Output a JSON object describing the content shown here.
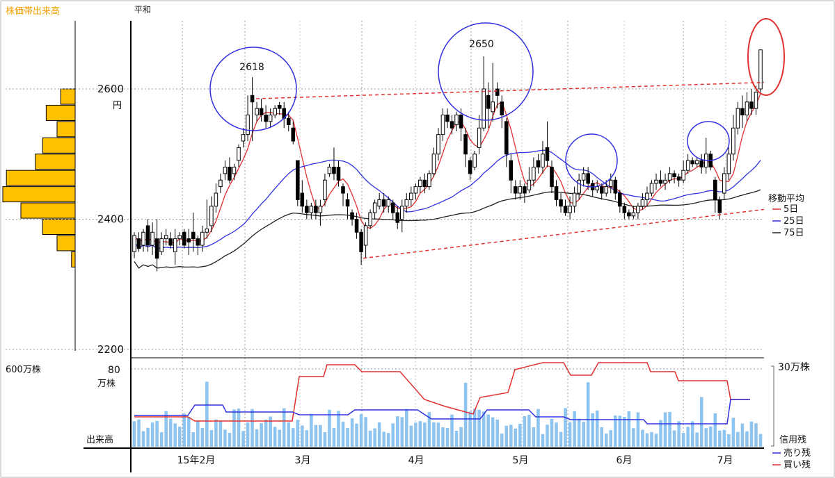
{
  "chart_data": {
    "type": "candlestick",
    "header": {
      "profile_label": "株価帯出来高",
      "market_label": "平和"
    },
    "price_axis": {
      "ticks": [
        2200,
        2400,
        2600
      ],
      "unit": "円",
      "range": [
        2200,
        2600
      ]
    },
    "x_ticks": [
      {
        "label": "15年2月",
        "index": 17
      },
      {
        "label": "3月",
        "index": 36
      },
      {
        "label": "4月",
        "index": 64
      },
      {
        "label": "5月",
        "index": 90
      },
      {
        "label": "6月",
        "index": 111
      },
      {
        "label": "7月",
        "index": 132
      }
    ],
    "volume_profile": {
      "scale_label": "600万株",
      "levels": [
        {
          "price": 2600,
          "value": 0.2
        },
        {
          "price": 2575,
          "value": 0.4
        },
        {
          "price": 2550,
          "value": 0.25
        },
        {
          "price": 2525,
          "value": 0.45
        },
        {
          "price": 2500,
          "value": 0.55
        },
        {
          "price": 2475,
          "value": 0.95
        },
        {
          "price": 2450,
          "value": 1.0
        },
        {
          "price": 2425,
          "value": 0.75
        },
        {
          "price": 2400,
          "value": 0.45
        },
        {
          "price": 2375,
          "value": 0.25
        },
        {
          "price": 2350,
          "value": 0.05
        }
      ]
    },
    "annotations": [
      {
        "text": "2618",
        "price": 2618
      },
      {
        "text": "2650",
        "price": 2650
      }
    ],
    "ma_legend": {
      "title": "移動平均",
      "items": [
        {
          "label": "5日",
          "color": "#e03030"
        },
        {
          "label": "25日",
          "color": "#3030e0"
        },
        {
          "label": "75日",
          "color": "#202020"
        }
      ]
    },
    "volume_axis": {
      "tick_label": "80",
      "unit_label": "万株",
      "name_label": "出来高",
      "right_scale_label": "30万株"
    },
    "margin_legend": {
      "title": "信用残",
      "items": [
        {
          "label": "売り残",
          "color": "#3030e0"
        },
        {
          "label": "買い残",
          "color": "#e03030"
        }
      ]
    },
    "candles": [
      [
        2350,
        2375,
        2340,
        2380
      ],
      [
        2370,
        2355,
        2350,
        2380
      ],
      [
        2360,
        2380,
        2350,
        2385
      ],
      [
        2390,
        2360,
        2350,
        2400
      ],
      [
        2360,
        2380,
        2345,
        2395
      ],
      [
        2370,
        2340,
        2320,
        2400
      ],
      [
        2350,
        2370,
        2345,
        2380
      ],
      [
        2370,
        2375,
        2360,
        2385
      ],
      [
        2370,
        2360,
        2355,
        2380
      ],
      [
        2350,
        2370,
        2330,
        2385
      ],
      [
        2370,
        2375,
        2360,
        2380
      ],
      [
        2380,
        2360,
        2355,
        2385
      ],
      [
        2370,
        2365,
        2345,
        2385
      ],
      [
        2380,
        2370,
        2350,
        2410
      ],
      [
        2370,
        2360,
        2345,
        2375
      ],
      [
        2360,
        2380,
        2350,
        2390
      ],
      [
        2380,
        2385,
        2370,
        2430
      ],
      [
        2390,
        2420,
        2380,
        2435
      ],
      [
        2420,
        2440,
        2410,
        2455
      ],
      [
        2450,
        2460,
        2440,
        2470
      ],
      [
        2470,
        2480,
        2460,
        2490
      ],
      [
        2480,
        2460,
        2455,
        2495
      ],
      [
        2470,
        2480,
        2460,
        2485
      ],
      [
        2490,
        2510,
        2480,
        2515
      ],
      [
        2520,
        2530,
        2510,
        2540
      ],
      [
        2530,
        2560,
        2520,
        2590
      ],
      [
        2590,
        2580,
        2520,
        2618
      ],
      [
        2560,
        2570,
        2550,
        2580
      ],
      [
        2570,
        2560,
        2550,
        2585
      ],
      [
        2560,
        2550,
        2540,
        2575
      ],
      [
        2550,
        2560,
        2540,
        2570
      ],
      [
        2560,
        2570,
        2555,
        2575
      ],
      [
        2575,
        2570,
        2560,
        2580
      ],
      [
        2570,
        2555,
        2540,
        2580
      ],
      [
        2555,
        2545,
        2535,
        2565
      ],
      [
        2540,
        2520,
        2515,
        2550
      ],
      [
        2490,
        2430,
        2420,
        2490
      ],
      [
        2440,
        2420,
        2410,
        2460
      ],
      [
        2420,
        2410,
        2400,
        2430
      ],
      [
        2410,
        2420,
        2400,
        2425
      ],
      [
        2420,
        2410,
        2400,
        2430
      ],
      [
        2410,
        2420,
        2390,
        2430
      ],
      [
        2430,
        2460,
        2420,
        2470
      ],
      [
        2470,
        2480,
        2465,
        2485
      ],
      [
        2480,
        2470,
        2460,
        2510
      ],
      [
        2480,
        2460,
        2450,
        2490
      ],
      [
        2450,
        2440,
        2420,
        2455
      ],
      [
        2430,
        2420,
        2400,
        2440
      ],
      [
        2410,
        2400,
        2390,
        2415
      ],
      [
        2400,
        2380,
        2370,
        2410
      ],
      [
        2380,
        2350,
        2330,
        2385
      ],
      [
        2360,
        2390,
        2340,
        2395
      ],
      [
        2390,
        2410,
        2385,
        2415
      ],
      [
        2410,
        2425,
        2400,
        2430
      ],
      [
        2420,
        2430,
        2415,
        2440
      ],
      [
        2430,
        2420,
        2410,
        2440
      ],
      [
        2420,
        2430,
        2410,
        2435
      ],
      [
        2425,
        2410,
        2400,
        2430
      ],
      [
        2410,
        2395,
        2385,
        2420
      ],
      [
        2400,
        2420,
        2380,
        2430
      ],
      [
        2420,
        2430,
        2410,
        2440
      ],
      [
        2430,
        2440,
        2420,
        2450
      ],
      [
        2440,
        2450,
        2430,
        2455
      ],
      [
        2450,
        2460,
        2440,
        2465
      ],
      [
        2460,
        2450,
        2440,
        2470
      ],
      [
        2450,
        2470,
        2445,
        2475
      ],
      [
        2470,
        2500,
        2465,
        2510
      ],
      [
        2500,
        2530,
        2490,
        2540
      ],
      [
        2530,
        2560,
        2520,
        2570
      ],
      [
        2560,
        2550,
        2540,
        2570
      ],
      [
        2550,
        2540,
        2530,
        2560
      ],
      [
        2545,
        2560,
        2535,
        2565
      ],
      [
        2560,
        2540,
        2520,
        2570
      ],
      [
        2530,
        2500,
        2480,
        2540
      ],
      [
        2490,
        2470,
        2460,
        2495
      ],
      [
        2480,
        2500,
        2475,
        2505
      ],
      [
        2510,
        2540,
        2500,
        2560
      ],
      [
        2540,
        2600,
        2535,
        2650
      ],
      [
        2590,
        2570,
        2540,
        2610
      ],
      [
        2565,
        2580,
        2550,
        2640
      ],
      [
        2600,
        2590,
        2570,
        2610
      ],
      [
        2580,
        2560,
        2540,
        2590
      ],
      [
        2550,
        2500,
        2480,
        2555
      ],
      [
        2490,
        2460,
        2440,
        2500
      ],
      [
        2450,
        2440,
        2430,
        2460
      ],
      [
        2440,
        2450,
        2430,
        2460
      ],
      [
        2450,
        2440,
        2425,
        2455
      ],
      [
        2445,
        2460,
        2440,
        2480
      ],
      [
        2460,
        2480,
        2450,
        2495
      ],
      [
        2490,
        2480,
        2470,
        2500
      ],
      [
        2480,
        2500,
        2470,
        2520
      ],
      [
        2510,
        2490,
        2480,
        2550
      ],
      [
        2480,
        2450,
        2440,
        2490
      ],
      [
        2450,
        2430,
        2420,
        2460
      ],
      [
        2430,
        2420,
        2410,
        2440
      ],
      [
        2420,
        2410,
        2405,
        2430
      ],
      [
        2410,
        2420,
        2400,
        2435
      ],
      [
        2420,
        2440,
        2410,
        2450
      ],
      [
        2440,
        2460,
        2430,
        2470
      ],
      [
        2460,
        2470,
        2450,
        2480
      ],
      [
        2470,
        2455,
        2445,
        2480
      ],
      [
        2455,
        2445,
        2435,
        2460
      ],
      [
        2445,
        2450,
        2440,
        2460
      ],
      [
        2450,
        2440,
        2430,
        2455
      ],
      [
        2440,
        2450,
        2435,
        2460
      ],
      [
        2450,
        2460,
        2440,
        2470
      ],
      [
        2460,
        2440,
        2430,
        2465
      ],
      [
        2440,
        2420,
        2410,
        2445
      ],
      [
        2420,
        2410,
        2400,
        2425
      ],
      [
        2410,
        2405,
        2400,
        2415
      ],
      [
        2405,
        2410,
        2400,
        2420
      ],
      [
        2410,
        2420,
        2400,
        2425
      ],
      [
        2420,
        2430,
        2415,
        2440
      ],
      [
        2430,
        2440,
        2420,
        2450
      ],
      [
        2440,
        2455,
        2435,
        2460
      ],
      [
        2455,
        2460,
        2445,
        2470
      ],
      [
        2460,
        2455,
        2450,
        2475
      ],
      [
        2455,
        2460,
        2445,
        2470
      ],
      [
        2460,
        2470,
        2455,
        2480
      ],
      [
        2470,
        2465,
        2455,
        2475
      ],
      [
        2465,
        2460,
        2450,
        2470
      ],
      [
        2460,
        2475,
        2455,
        2490
      ],
      [
        2475,
        2490,
        2470,
        2500
      ],
      [
        2490,
        2485,
        2480,
        2495
      ],
      [
        2485,
        2490,
        2480,
        2495
      ],
      [
        2490,
        2480,
        2470,
        2500
      ],
      [
        2480,
        2500,
        2470,
        2525
      ],
      [
        2500,
        2480,
        2475,
        2505
      ],
      [
        2460,
        2430,
        2410,
        2465
      ],
      [
        2430,
        2410,
        2400,
        2435
      ],
      [
        2440,
        2470,
        2430,
        2480
      ],
      [
        2470,
        2500,
        2460,
        2510
      ],
      [
        2500,
        2540,
        2490,
        2560
      ],
      [
        2540,
        2570,
        2530,
        2580
      ],
      [
        2570,
        2560,
        2540,
        2590
      ],
      [
        2560,
        2580,
        2550,
        2595
      ],
      [
        2580,
        2570,
        2560,
        2600
      ],
      [
        2570,
        2595,
        2560,
        2605
      ],
      [
        2600,
        2660,
        2595,
        2660
      ]
    ]
  }
}
